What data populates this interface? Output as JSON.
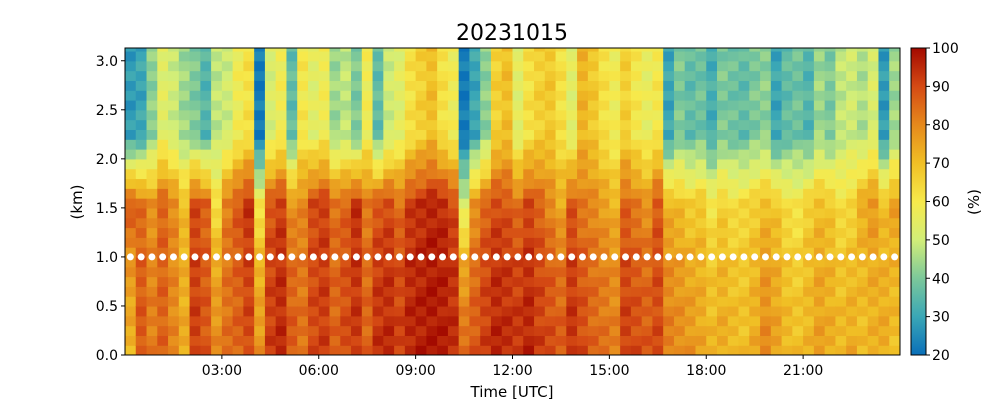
{
  "chart_data": {
    "type": "heatmap",
    "title": "20231015",
    "xlabel": "Time [UTC]",
    "ylabel": "(km)",
    "xlim": [
      "00:00",
      "24:00"
    ],
    "ylim": [
      0.0,
      3.13
    ],
    "x_ticks": [
      "03:00",
      "06:00",
      "09:00",
      "12:00",
      "15:00",
      "18:00",
      "21:00"
    ],
    "y_ticks": [
      "0.0",
      "0.5",
      "1.0",
      "1.5",
      "2.0",
      "2.5",
      "3.0"
    ],
    "colorbar": {
      "label": "(%)",
      "range": [
        20,
        100
      ],
      "ticks": [
        "20",
        "30",
        "40",
        "50",
        "60",
        "70",
        "80",
        "90",
        "100"
      ],
      "colormap": [
        "#0a6fb8",
        "#3aa7b6",
        "#7cc89a",
        "#d2ee78",
        "#f7e94b",
        "#f0bf25",
        "#e6891c",
        "#d54a14",
        "#a30a00"
      ]
    },
    "time_bin_minutes": 20,
    "height_levels_km": [
      0.0,
      0.1,
      0.2,
      0.3,
      0.4,
      0.5,
      0.6,
      0.7,
      0.8,
      0.9,
      1.0,
      1.1,
      1.2,
      1.3,
      1.4,
      1.5,
      1.6,
      1.7,
      1.8,
      1.9,
      2.0,
      2.1,
      2.2,
      2.3,
      2.4,
      2.5,
      2.6,
      2.7,
      2.8,
      2.9,
      3.0,
      3.1
    ],
    "column_profiles": {
      "base_low": [
        72,
        88,
        82,
        86,
        80,
        74,
        92,
        88,
        80,
        84,
        86,
        90,
        78,
        92,
        95,
        88,
        84,
        90,
        92,
        86,
        90,
        93,
        86,
        94,
        95,
        92,
        96,
        97,
        98,
        97,
        95,
        86,
        88,
        92,
        96,
        95,
        94,
        96,
        92,
        90,
        88,
        94,
        90,
        86,
        84,
        82,
        92,
        90,
        88,
        90,
        82,
        80,
        78,
        75,
        72,
        74,
        72,
        70,
        74,
        80,
        76,
        72,
        70,
        72,
        76,
        74,
        72,
        74,
        70,
        72,
        74,
        70
      ],
      "mid_1km": [
        88,
        84,
        78,
        86,
        80,
        70,
        90,
        86,
        62,
        82,
        88,
        94,
        60,
        88,
        92,
        78,
        80,
        90,
        92,
        84,
        86,
        94,
        82,
        88,
        90,
        84,
        92,
        94,
        96,
        95,
        90,
        52,
        78,
        86,
        90,
        88,
        84,
        90,
        86,
        80,
        74,
        88,
        82,
        80,
        76,
        72,
        86,
        82,
        78,
        88,
        72,
        70,
        66,
        68,
        60,
        66,
        62,
        64,
        66,
        70,
        68,
        62,
        60,
        66,
        70,
        68,
        62,
        64,
        74,
        78,
        70,
        76
      ],
      "top": [
        28,
        30,
        42,
        54,
        50,
        44,
        40,
        34,
        48,
        50,
        58,
        62,
        22,
        52,
        58,
        36,
        60,
        54,
        58,
        44,
        48,
        40,
        58,
        36,
        50,
        54,
        62,
        66,
        70,
        62,
        58,
        22,
        30,
        42,
        66,
        70,
        54,
        62,
        66,
        68,
        62,
        54,
        72,
        68,
        62,
        58,
        66,
        60,
        56,
        60,
        30,
        40,
        36,
        38,
        32,
        40,
        38,
        36,
        40,
        42,
        30,
        36,
        38,
        34,
        44,
        40,
        48,
        50,
        46,
        52,
        28,
        44
      ]
    },
    "marker_line": {
      "label": "1.0",
      "y_km": 1.0,
      "color": "#ffffff"
    }
  }
}
